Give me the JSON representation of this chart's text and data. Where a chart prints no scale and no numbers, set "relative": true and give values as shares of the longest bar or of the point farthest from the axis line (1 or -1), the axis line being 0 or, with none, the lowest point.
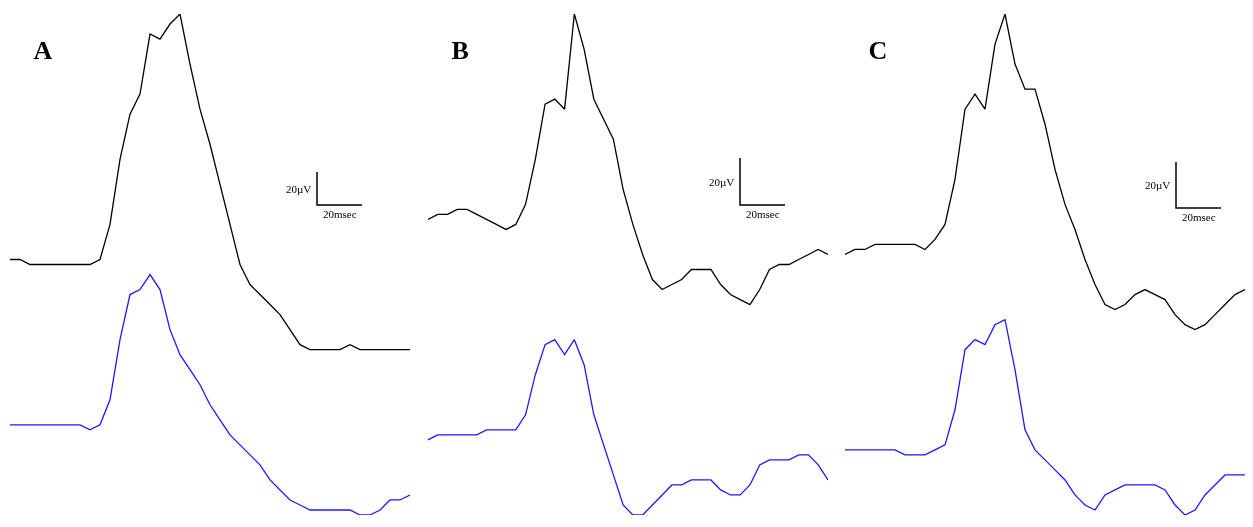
{
  "chart_data": [
    {
      "type": "line",
      "title": "A",
      "relative": true,
      "grid": false,
      "tick_labels": false,
      "marker": "none",
      "annotations": [
        "20µV",
        "20msec"
      ],
      "categories": [
        null,
        null,
        null,
        null,
        null,
        null,
        null,
        null,
        null,
        null,
        null,
        null,
        null,
        null,
        null,
        null,
        null,
        null,
        null,
        null,
        null,
        null,
        null,
        null,
        null,
        null,
        null,
        null,
        null,
        null,
        null,
        null,
        null,
        null,
        null,
        null,
        null,
        null,
        null,
        null,
        null
      ],
      "series": [
        {
          "color": "#000000",
          "values": [
            0.51,
            0.51,
            0.5,
            0.5,
            0.5,
            0.5,
            0.5,
            0.5,
            0.5,
            0.51,
            0.58,
            0.71,
            0.8,
            0.84,
            0.96,
            0.95,
            0.98,
            1.0,
            0.9,
            0.81,
            0.74,
            0.66,
            0.58,
            0.5,
            0.46,
            0.44,
            0.42,
            0.4,
            0.37,
            0.34,
            0.33,
            0.33,
            0.33,
            0.33,
            0.34,
            0.33,
            0.33,
            0.33,
            0.33,
            0.33,
            0.33
          ]
        },
        {
          "color": "#1a1aff",
          "values": [
            0.18,
            0.18,
            0.18,
            0.18,
            0.18,
            0.18,
            0.18,
            0.18,
            0.17,
            0.18,
            0.23,
            0.35,
            0.44,
            0.45,
            0.48,
            0.45,
            0.37,
            0.32,
            0.29,
            0.26,
            0.22,
            0.19,
            0.16,
            0.14,
            0.12,
            0.1,
            0.07,
            0.05,
            0.03,
            0.02,
            0.01,
            0.01,
            0.01,
            0.01,
            0.01,
            0,
            0,
            0.01,
            0.03,
            0.03,
            0.04
          ]
        }
      ]
    },
    {
      "type": "line",
      "title": "B",
      "relative": true,
      "grid": false,
      "tick_labels": false,
      "marker": "none",
      "annotations": [
        "20µV",
        "20msec"
      ],
      "categories": [
        null,
        null,
        null,
        null,
        null,
        null,
        null,
        null,
        null,
        null,
        null,
        null,
        null,
        null,
        null,
        null,
        null,
        null,
        null,
        null,
        null,
        null,
        null,
        null,
        null,
        null,
        null,
        null,
        null,
        null,
        null,
        null,
        null,
        null,
        null,
        null,
        null,
        null,
        null,
        null,
        null,
        null
      ],
      "series": [
        {
          "color": "#000000",
          "values": [
            0.59,
            0.6,
            0.6,
            0.61,
            0.61,
            0.6,
            0.59,
            0.58,
            0.57,
            0.58,
            0.62,
            0.71,
            0.82,
            0.83,
            0.81,
            1.0,
            0.93,
            0.83,
            0.79,
            0.75,
            0.65,
            0.58,
            0.52,
            0.47,
            0.45,
            0.46,
            0.47,
            0.49,
            0.49,
            0.49,
            0.46,
            0.44,
            0.43,
            0.42,
            0.45,
            0.49,
            0.5,
            0.5,
            0.51,
            0.52,
            0.53,
            0.52
          ]
        },
        {
          "color": "#1a1aff",
          "values": [
            0.15,
            0.16,
            0.16,
            0.16,
            0.16,
            0.16,
            0.17,
            0.17,
            0.17,
            0.17,
            0.2,
            0.28,
            0.34,
            0.35,
            0.32,
            0.35,
            0.3,
            0.2,
            0.14,
            0.08,
            0.02,
            0,
            0,
            0.02,
            0.04,
            0.06,
            0.06,
            0.07,
            0.07,
            0.07,
            0.05,
            0.04,
            0.04,
            0.06,
            0.1,
            0.11,
            0.11,
            0.11,
            0.12,
            0.12,
            0.1,
            0.07
          ]
        }
      ]
    },
    {
      "type": "line",
      "title": "C",
      "relative": true,
      "grid": false,
      "tick_labels": false,
      "marker": "none",
      "annotations": [
        "20µV",
        "20msec"
      ],
      "categories": [
        null,
        null,
        null,
        null,
        null,
        null,
        null,
        null,
        null,
        null,
        null,
        null,
        null,
        null,
        null,
        null,
        null,
        null,
        null,
        null,
        null,
        null,
        null,
        null,
        null,
        null,
        null,
        null,
        null,
        null,
        null,
        null,
        null,
        null,
        null,
        null,
        null,
        null,
        null,
        null,
        null
      ],
      "series": [
        {
          "color": "#000000",
          "values": [
            0.52,
            0.53,
            0.53,
            0.54,
            0.54,
            0.54,
            0.54,
            0.54,
            0.53,
            0.55,
            0.58,
            0.67,
            0.81,
            0.84,
            0.81,
            0.94,
            1.0,
            0.9,
            0.85,
            0.85,
            0.78,
            0.69,
            0.62,
            0.57,
            0.51,
            0.46,
            0.42,
            0.41,
            0.42,
            0.44,
            0.45,
            0.44,
            0.43,
            0.4,
            0.38,
            0.37,
            0.38,
            0.4,
            0.42,
            0.44,
            0.45
          ]
        },
        {
          "color": "#1a1aff",
          "values": [
            0.13,
            0.13,
            0.13,
            0.13,
            0.13,
            0.13,
            0.12,
            0.12,
            0.12,
            0.13,
            0.14,
            0.21,
            0.33,
            0.35,
            0.34,
            0.38,
            0.39,
            0.29,
            0.17,
            0.13,
            0.11,
            0.09,
            0.07,
            0.04,
            0.02,
            0.01,
            0.04,
            0.05,
            0.06,
            0.06,
            0.06,
            0.06,
            0.05,
            0.02,
            0,
            0.01,
            0.04,
            0.06,
            0.08,
            0.08,
            0.08
          ]
        }
      ]
    }
  ]
}
